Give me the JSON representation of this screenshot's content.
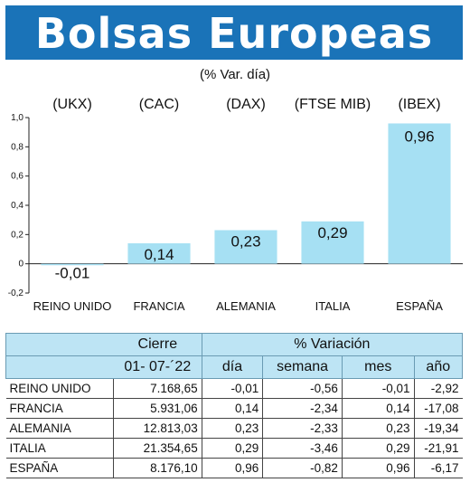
{
  "header": {
    "title": "Bolsas Europeas",
    "subtitle": "(% Var. día)"
  },
  "colors": {
    "title_bar": "#1a73b8",
    "bar_fill": "#a6e0f3",
    "table_header": "#bde4f4"
  },
  "chart_data": {
    "type": "bar",
    "categories": [
      "REINO UNIDO",
      "FRANCIA",
      "ALEMANIA",
      "ITALIA",
      "ESPAÑA"
    ],
    "codes": [
      "(UKX)",
      "(CAC)",
      "(DAX)",
      "(FTSE MIB)",
      "(IBEX)"
    ],
    "values": [
      -0.01,
      0.14,
      0.23,
      0.29,
      0.96
    ],
    "value_labels": [
      "-0,01",
      "0,14",
      "0,23",
      "0,29",
      "0,96"
    ],
    "ylim": [
      -0.2,
      1.0
    ],
    "yticks": [
      -0.2,
      0,
      0.2,
      0.4,
      0.6,
      0.8,
      1.0
    ],
    "ytick_labels": [
      "-0,2",
      "0",
      "0,2",
      "0,4",
      "0,6",
      "0,8",
      "1,0"
    ],
    "grid": false,
    "title": "Bolsas Europeas",
    "xlabel": "",
    "ylabel": ""
  },
  "table": {
    "header_cierre": "Cierre",
    "header_variacion": "% Variación",
    "date": "01- 07-´22",
    "col_dia": "día",
    "col_semana": "semana",
    "col_mes": "mes",
    "col_ano": "año",
    "rows": [
      {
        "name": "REINO UNIDO",
        "cierre": "7.168,65",
        "dia": "-0,01",
        "semana": "-0,56",
        "mes": "-0,01",
        "ano": "-2,92"
      },
      {
        "name": "FRANCIA",
        "cierre": "5.931,06",
        "dia": "0,14",
        "semana": "-2,34",
        "mes": "0,14",
        "ano": "-17,08"
      },
      {
        "name": "ALEMANIA",
        "cierre": "12.813,03",
        "dia": "0,23",
        "semana": "-2,33",
        "mes": "0,23",
        "ano": "-19,34"
      },
      {
        "name": "ITALIA",
        "cierre": "21.354,65",
        "dia": "0,29",
        "semana": "-3,46",
        "mes": "0,29",
        "ano": "-21,91"
      },
      {
        "name": "ESPAÑA",
        "cierre": "8.176,10",
        "dia": "0,96",
        "semana": "-0,82",
        "mes": "0,96",
        "ano": "-6,17"
      }
    ]
  }
}
